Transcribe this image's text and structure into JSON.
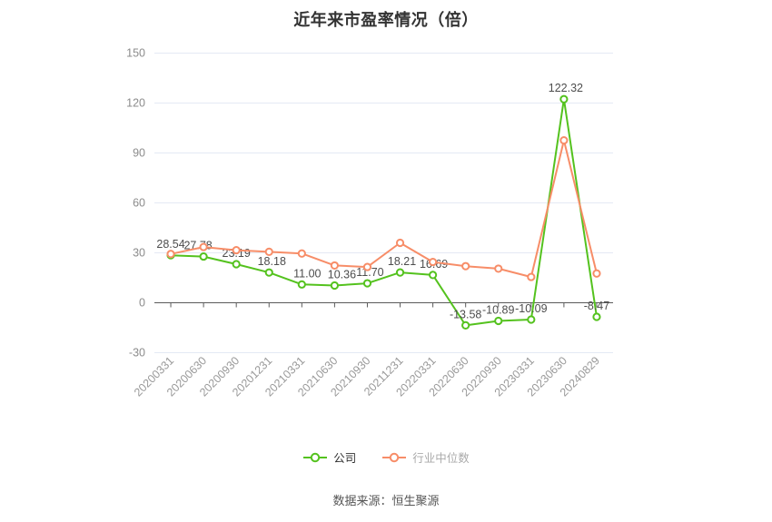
{
  "chart_data": {
    "type": "line",
    "title": "近年来市盈率情况（倍）",
    "source_note": "数据来源：恒生聚源",
    "categories": [
      "20200331",
      "20200630",
      "20200930",
      "20201231",
      "20210331",
      "20210630",
      "20210930",
      "20211231",
      "20220331",
      "20220630",
      "20220930",
      "20230331",
      "20230630",
      "20240829"
    ],
    "y_ticks": [
      150,
      120,
      90,
      60,
      30,
      0,
      -30
    ],
    "ylim": [
      -30,
      150
    ],
    "grid": "horizontal-only",
    "legend_position": "bottom",
    "colors": {
      "company_green": "#54c21e",
      "industry_salmon": "#f78d68",
      "grid_line": "#e4e9f4",
      "axis_line": "#5a5a5a",
      "axis_label": "#999999",
      "y_axis_label": "#8c8c8c",
      "value_label": "#4d4d4d",
      "title_text": "#333333"
    },
    "series": [
      {
        "key": "company",
        "name": "公司",
        "color": "#54c21e",
        "values": [
          28.54,
          27.78,
          23.19,
          18.18,
          11.0,
          10.36,
          11.7,
          18.21,
          16.69,
          -13.58,
          -10.89,
          -10.09,
          122.32,
          -8.47
        ],
        "value_labels": [
          "28.54",
          "27.78",
          "23.19",
          "18.18",
          "11.00",
          "10.36",
          "11.70",
          "18.21",
          "16.69",
          "-13.58",
          "-10.89",
          "-10.09",
          "122.32",
          "-8.47"
        ],
        "label_dx": [
          0,
          -6,
          0,
          3,
          6,
          8,
          3,
          2,
          1,
          0,
          0,
          0,
          2,
          0
        ]
      },
      {
        "key": "industry",
        "name": "行业中位数",
        "color": "#f78d68",
        "values": [
          29.3,
          33.5,
          31.6,
          30.6,
          29.6,
          22.4,
          21.5,
          36.0,
          24.5,
          22.0,
          20.5,
          15.5,
          97.6,
          17.6
        ],
        "value_labels": null,
        "label_dx": null
      }
    ]
  }
}
